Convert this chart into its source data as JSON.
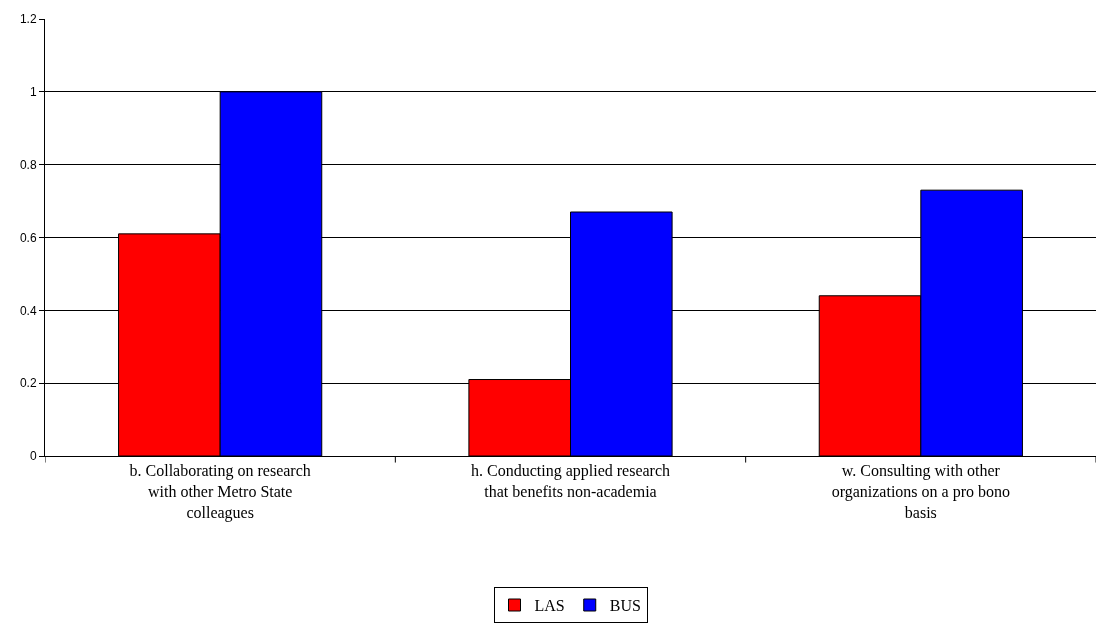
{
  "chart_data": {
    "type": "bar",
    "categories": [
      "b. Collaborating on research with other Metro State colleagues",
      "h. Conducting applied research that benefits non-academia",
      "w. Consulting with other organizations on a pro bono basis"
    ],
    "series": [
      {
        "name": "LAS",
        "color": "#ff0000",
        "values": [
          0.61,
          0.21,
          0.44
        ]
      },
      {
        "name": "BUS",
        "color": "#0000ff",
        "values": [
          1.0,
          0.67,
          0.73
        ]
      }
    ],
    "ylim": [
      0,
      1.2
    ],
    "yticks": [
      0,
      0.2,
      0.4,
      0.6,
      0.8,
      1,
      1.2
    ],
    "grid": "y",
    "legend": "bottom"
  }
}
